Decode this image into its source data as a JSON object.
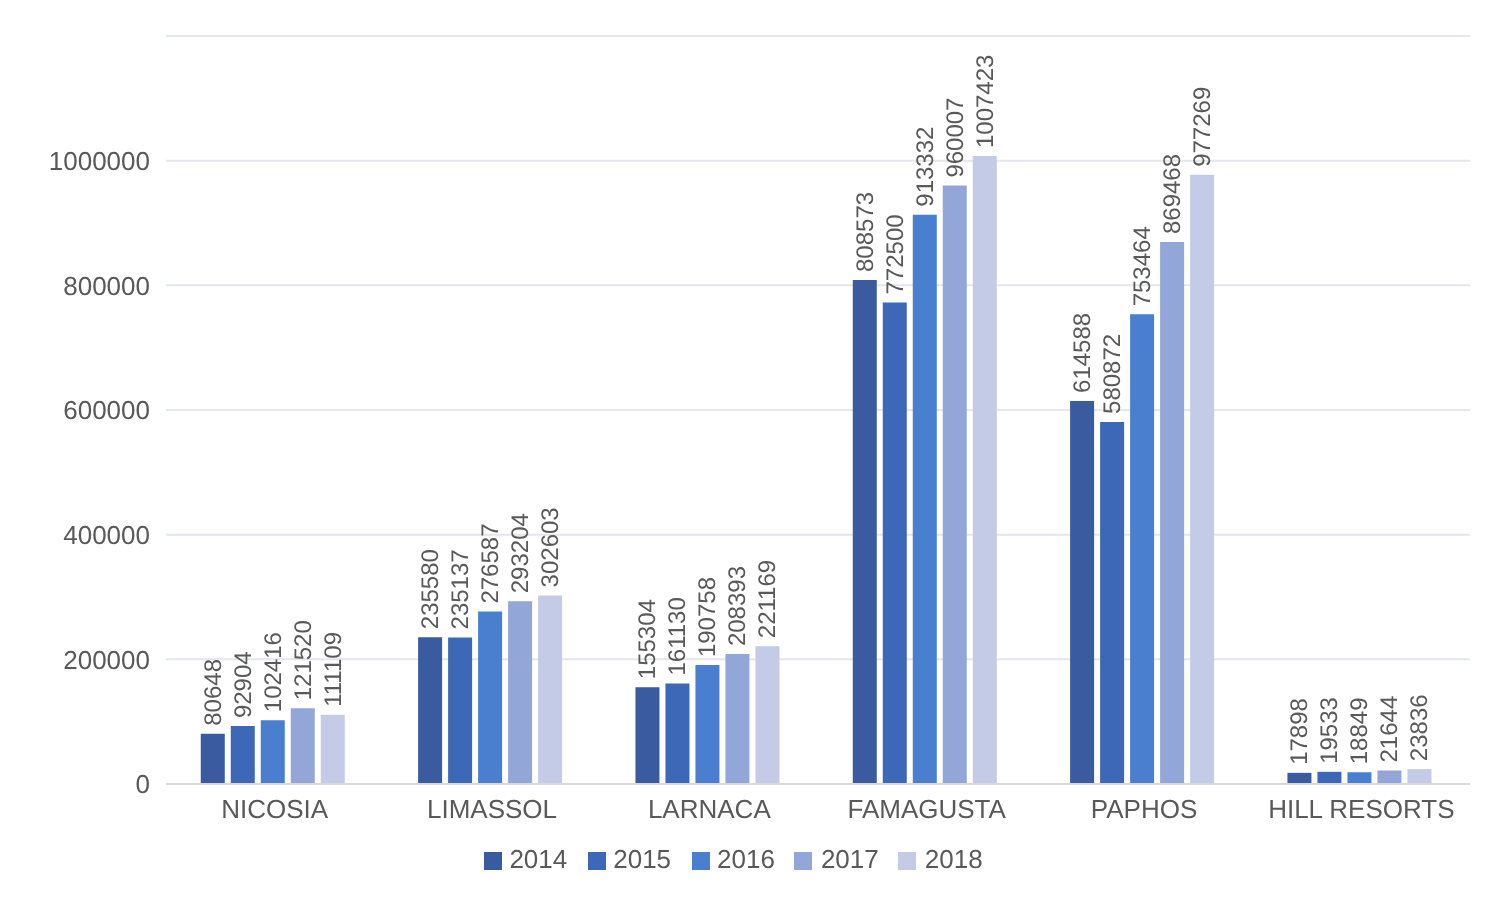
{
  "chart_data": {
    "type": "bar",
    "categories": [
      "NICOSIA",
      "LIMASSOL",
      "LARNACA",
      "FAMAGUSTA",
      "PAPHOS",
      "HILL RESORTS"
    ],
    "series": [
      {
        "name": "2014",
        "color": "#3a5ba0",
        "values": [
          80648,
          235580,
          155304,
          808573,
          614588,
          17898
        ]
      },
      {
        "name": "2015",
        "color": "#3d68b8",
        "values": [
          92904,
          235137,
          161130,
          772500,
          580872,
          19533
        ]
      },
      {
        "name": "2016",
        "color": "#4a7fd0",
        "values": [
          102416,
          276587,
          190758,
          913332,
          753464,
          18849
        ]
      },
      {
        "name": "2017",
        "color": "#93a6d8",
        "values": [
          121520,
          293204,
          208393,
          960007,
          869468,
          21644
        ]
      },
      {
        "name": "2018",
        "color": "#c3cbe6",
        "values": [
          111109,
          302603,
          221169,
          1007423,
          977269,
          23836
        ]
      }
    ],
    "ylim": [
      0,
      1200000
    ],
    "yticks": [
      0,
      200000,
      400000,
      600000,
      800000,
      1000000
    ],
    "grid": "y",
    "legend": "bottom",
    "data_labels": true
  }
}
